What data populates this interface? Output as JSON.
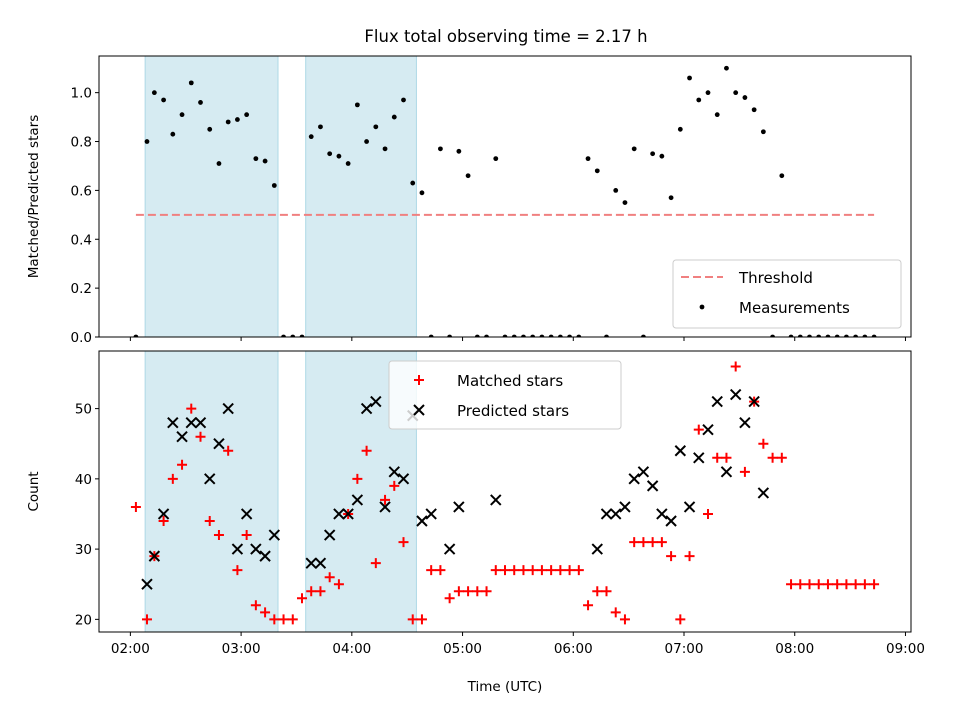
{
  "title": "Flux total observing time = 2.17 h",
  "chart_data": [
    {
      "type": "scatter",
      "ylabel": "Matched/Predicted stars",
      "xlim": [
        "01:43",
        "09:03"
      ],
      "ylim": [
        0,
        1.15
      ],
      "yticks": [
        "0.0",
        "0.2",
        "0.4",
        "0.6",
        "0.8",
        "1.0"
      ],
      "shaded_intervals": [
        [
          "02:08",
          "03:20"
        ],
        [
          "03:35",
          "04:35"
        ]
      ],
      "threshold": {
        "name": "Threshold",
        "value": 0.5,
        "x_range": [
          "02:03",
          "08:43"
        ],
        "color": "#f08080"
      },
      "legend": {
        "position": "lower-right",
        "entries": [
          "Threshold",
          "Measurements"
        ]
      },
      "series": [
        {
          "name": "Measurements",
          "color": "#000000",
          "x": [
            "02:03",
            "02:09",
            "02:13",
            "02:18",
            "02:23",
            "02:28",
            "02:33",
            "02:38",
            "02:43",
            "02:48",
            "02:53",
            "02:58",
            "03:03",
            "03:08",
            "03:13",
            "03:18",
            "03:23",
            "03:28",
            "03:33",
            "03:38",
            "03:43",
            "03:48",
            "03:53",
            "03:58",
            "04:03",
            "04:08",
            "04:13",
            "04:18",
            "04:23",
            "04:28",
            "04:33",
            "04:38",
            "04:43",
            "04:48",
            "04:53",
            "04:58",
            "05:03",
            "05:08",
            "05:13",
            "05:18",
            "05:23",
            "05:28",
            "05:33",
            "05:38",
            "05:43",
            "05:48",
            "05:53",
            "05:58",
            "06:03",
            "06:08",
            "06:13",
            "06:18",
            "06:23",
            "06:28",
            "06:33",
            "06:38",
            "06:43",
            "06:48",
            "06:53",
            "06:58",
            "07:03",
            "07:08",
            "07:13",
            "07:18",
            "07:23",
            "07:28",
            "07:33",
            "07:38",
            "07:43",
            "07:48",
            "07:53",
            "07:58",
            "08:03",
            "08:08",
            "08:13",
            "08:18",
            "08:23",
            "08:28",
            "08:33",
            "08:38",
            "08:43"
          ],
          "y": [
            0.0,
            0.8,
            1.0,
            0.97,
            0.83,
            0.91,
            1.04,
            0.96,
            0.85,
            0.71,
            0.88,
            0.89,
            0.91,
            0.73,
            0.72,
            0.62,
            0.0,
            0.0,
            0.0,
            0.82,
            0.86,
            0.75,
            0.74,
            0.71,
            0.95,
            0.8,
            0.86,
            0.77,
            0.9,
            0.97,
            0.63,
            0.59,
            0.0,
            0.77,
            0.0,
            0.76,
            0.66,
            0.0,
            0.0,
            0.73,
            0.0,
            0.0,
            0.0,
            0.0,
            0.0,
            0.0,
            0.0,
            0.0,
            0.0,
            0.73,
            0.68,
            0.0,
            0.6,
            0.55,
            0.77,
            0.0,
            0.75,
            0.74,
            0.57,
            0.85,
            1.06,
            0.97,
            1.0,
            0.91,
            1.1,
            1.0,
            0.98,
            0.93,
            0.84,
            0.0,
            0.66,
            0.0,
            0.0,
            0.0,
            0.0,
            0.0,
            0.0,
            0.0,
            0.0,
            0.0,
            0.0
          ]
        }
      ]
    },
    {
      "type": "scatter",
      "xlabel": "Time (UTC)",
      "ylabel": "Count",
      "xlim": [
        "01:43",
        "09:03"
      ],
      "ylim": [
        18.2,
        58.2
      ],
      "xticks": [
        "02:00",
        "03:00",
        "04:00",
        "05:00",
        "06:00",
        "07:00",
        "08:00",
        "09:00"
      ],
      "yticks": [
        "20",
        "30",
        "40",
        "50"
      ],
      "shaded_intervals": [
        [
          "02:08",
          "03:20"
        ],
        [
          "03:35",
          "04:35"
        ]
      ],
      "legend": {
        "position": "upper-center",
        "entries": [
          "Matched stars",
          "Predicted stars"
        ]
      },
      "series": [
        {
          "name": "Matched stars",
          "marker": "plus",
          "color": "#ff0000",
          "x": [
            "02:03",
            "02:09",
            "02:13",
            "02:18",
            "02:23",
            "02:28",
            "02:33",
            "02:38",
            "02:43",
            "02:48",
            "02:53",
            "02:58",
            "03:03",
            "03:08",
            "03:13",
            "03:18",
            "03:23",
            "03:28",
            "03:33",
            "03:38",
            "03:43",
            "03:48",
            "03:53",
            "03:58",
            "04:03",
            "04:08",
            "04:13",
            "04:18",
            "04:23",
            "04:28",
            "04:33",
            "04:38",
            "04:43",
            "04:48",
            "04:53",
            "04:58",
            "05:03",
            "05:08",
            "05:13",
            "05:18",
            "05:23",
            "05:28",
            "05:33",
            "05:38",
            "05:43",
            "05:48",
            "05:53",
            "05:58",
            "06:03",
            "06:08",
            "06:13",
            "06:18",
            "06:23",
            "06:28",
            "06:33",
            "06:38",
            "06:43",
            "06:48",
            "06:53",
            "06:58",
            "07:03",
            "07:08",
            "07:13",
            "07:18",
            "07:23",
            "07:28",
            "07:33",
            "07:38",
            "07:43",
            "07:48",
            "07:53",
            "07:58",
            "08:03",
            "08:08",
            "08:13",
            "08:18",
            "08:23",
            "08:28",
            "08:33",
            "08:38",
            "08:43"
          ],
          "y": [
            36,
            20,
            29,
            34,
            40,
            42,
            50,
            46,
            34,
            32,
            44,
            27,
            32,
            22,
            21,
            20,
            20,
            20,
            23,
            24,
            24,
            26,
            25,
            35,
            40,
            44,
            28,
            37,
            39,
            31,
            20,
            20,
            27,
            27,
            23,
            24,
            24,
            24,
            24,
            27,
            27,
            27,
            27,
            27,
            27,
            27,
            27,
            27,
            27,
            22,
            24,
            24,
            21,
            20,
            31,
            31,
            31,
            31,
            29,
            20,
            29,
            47,
            35,
            43,
            43,
            56,
            41,
            51,
            45,
            43,
            43,
            25,
            25,
            25,
            25,
            25,
            25,
            25,
            25,
            25,
            25
          ]
        },
        {
          "name": "Predicted stars",
          "marker": "x",
          "color": "#000000",
          "x": [
            "02:09",
            "02:13",
            "02:18",
            "02:23",
            "02:28",
            "02:33",
            "02:38",
            "02:43",
            "02:48",
            "02:53",
            "02:58",
            "03:03",
            "03:08",
            "03:13",
            "03:18",
            "03:38",
            "03:43",
            "03:48",
            "03:53",
            "03:58",
            "04:03",
            "04:08",
            "04:13",
            "04:18",
            "04:23",
            "04:28",
            "04:33",
            "04:38",
            "04:43",
            "04:53",
            "04:58",
            "05:18",
            "06:13",
            "06:18",
            "06:23",
            "06:28",
            "06:33",
            "06:38",
            "06:43",
            "06:48",
            "06:53",
            "06:58",
            "07:03",
            "07:08",
            "07:13",
            "07:18",
            "07:23",
            "07:28",
            "07:33",
            "07:38",
            "07:43",
            "07:48",
            "07:53",
            "07:58",
            "08:03",
            "08:08",
            "08:13"
          ],
          "y": [
            25,
            29,
            35,
            48,
            46,
            48,
            48,
            40,
            45,
            50,
            30,
            35,
            30,
            29,
            32,
            28,
            28,
            32,
            35,
            35,
            37,
            50,
            51,
            36,
            41,
            40,
            49,
            34,
            35,
            30,
            36,
            37,
            30,
            35,
            35,
            36,
            40,
            41,
            39,
            35,
            34,
            44,
            36,
            43,
            47,
            51,
            41,
            52,
            48,
            51,
            38,
            null,
            null,
            null,
            null,
            null,
            null
          ]
        }
      ]
    }
  ]
}
